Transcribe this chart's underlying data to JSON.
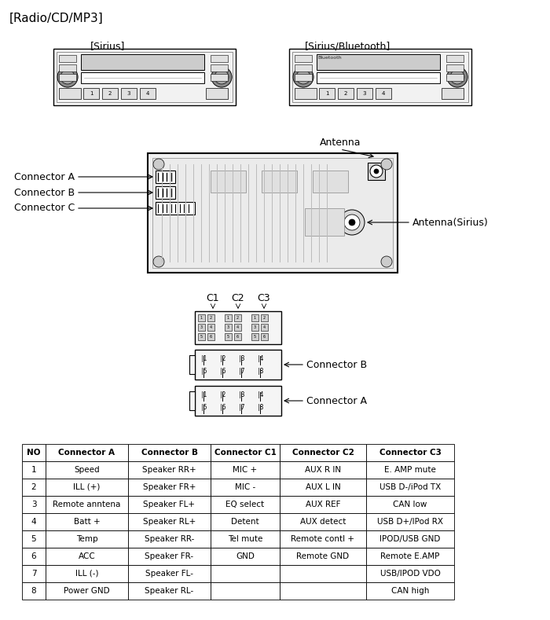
{
  "title": "[Radio/CD/MP3]",
  "label_sirius": "[Sirius]",
  "label_sirius_bt": "[Sirius/Bluetooth]",
  "label_antenna": "Antenna",
  "label_antenna_sirius": "Antenna(Sirius)",
  "label_connector_a_left": "Connector A",
  "label_connector_b_left": "Connector B",
  "label_connector_c_left": "Connector C",
  "label_c1": "C1",
  "label_c2": "C2",
  "label_c3": "C3",
  "label_connector_b_right": "Connector B",
  "label_connector_a_right": "Connector A",
  "bg_color": "#ffffff",
  "line_color": "#000000",
  "table_header": [
    "NO",
    "Connector A",
    "Connector B",
    "Connector C1",
    "Connector C2",
    "Connector C3"
  ],
  "table_rows": [
    [
      "1",
      "Speed",
      "Speaker RR+",
      "MIC +",
      "AUX R IN",
      "E. AMP mute"
    ],
    [
      "2",
      "ILL (+)",
      "Speaker FR+",
      "MIC -",
      "AUX L IN",
      "USB D-/iPod TX"
    ],
    [
      "3",
      "Remote anntena",
      "Speaker FL+",
      "EQ select",
      "AUX REF",
      "CAN low"
    ],
    [
      "4",
      "Batt +",
      "Speaker RL+",
      "Detent",
      "AUX detect",
      "USB D+/IPod RX"
    ],
    [
      "5",
      "Temp",
      "Speaker RR-",
      "Tel mute",
      "Remote contl +",
      "IPOD/USB GND"
    ],
    [
      "6",
      "ACC",
      "Speaker FR-",
      "GND",
      "Remote GND",
      "Remote E.AMP"
    ],
    [
      "7",
      "ILL (-)",
      "Speaker FL-",
      "",
      "",
      "USB/IPOD VDO"
    ],
    [
      "8",
      "Power GND",
      "Speaker RL-",
      "",
      "",
      "CAN high"
    ]
  ],
  "font_size_title": 11,
  "font_size_label": 9,
  "font_size_table": 7.5
}
